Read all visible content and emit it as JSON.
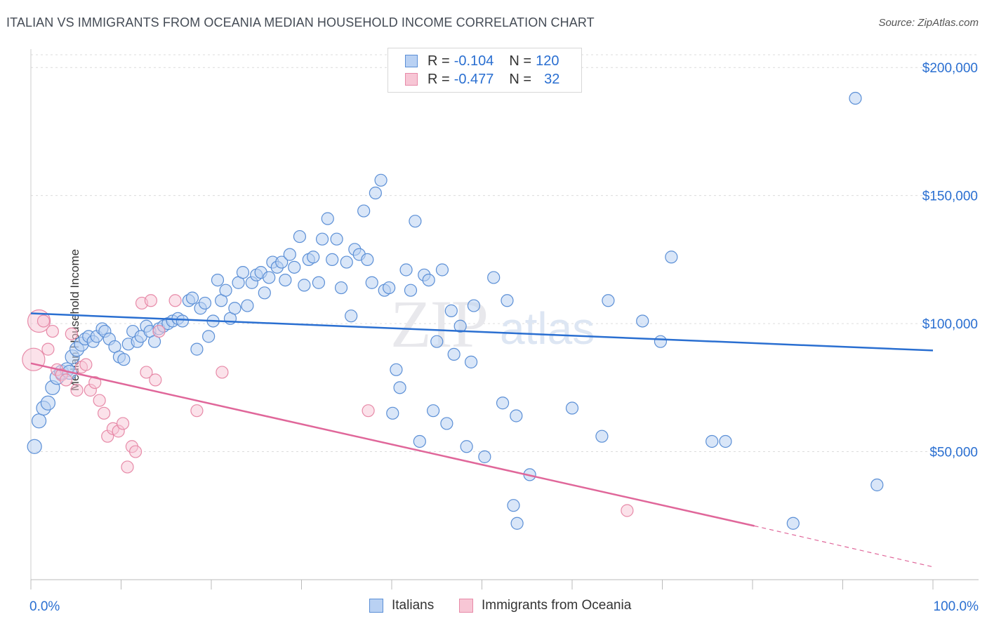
{
  "header": {
    "title": "ITALIAN VS IMMIGRANTS FROM OCEANIA MEDIAN HOUSEHOLD INCOME CORRELATION CHART",
    "source": "Source: ZipAtlas.com"
  },
  "watermark": {
    "text_zip": "ZIP",
    "text_atlas": "atlas"
  },
  "legend": {
    "r_label": "R =",
    "n_label": "N =",
    "rows": [
      {
        "r": "-0.104",
        "n": "120",
        "color": "#5b8fd6",
        "fill": "#b9d1f3"
      },
      {
        "r": "-0.477",
        "n": "32",
        "color": "#e78aa8",
        "fill": "#f7c6d5"
      }
    ]
  },
  "chart_data": {
    "type": "scatter",
    "title": "ITALIAN VS IMMIGRANTS FROM OCEANIA MEDIAN HOUSEHOLD INCOME CORRELATION CHART",
    "xlabel": "",
    "ylabel": "Median Household Income",
    "xlim": [
      0,
      100
    ],
    "ylim": [
      0,
      205000
    ],
    "x_tick_labels": [
      "0.0%",
      "100.0%"
    ],
    "y_ticks": [
      50000,
      100000,
      150000,
      200000
    ],
    "y_tick_labels": [
      "$50,000",
      "$100,000",
      "$150,000",
      "$200,000"
    ],
    "grid": true,
    "legend_position": "top-center",
    "series": [
      {
        "name": "Italians",
        "color": "#5b8fd6",
        "fill": "#b9d1f3",
        "trend": {
          "x": [
            0,
            100
          ],
          "y": [
            104000,
            89500
          ]
        },
        "points": [
          [
            0.4,
            52000
          ],
          [
            0.9,
            62000
          ],
          [
            1.4,
            67000
          ],
          [
            1.9,
            69000
          ],
          [
            2.4,
            75000
          ],
          [
            2.9,
            79000
          ],
          [
            3.4,
            81000
          ],
          [
            4.0,
            82000
          ],
          [
            4.3,
            81000
          ],
          [
            4.6,
            87000
          ],
          [
            5.1,
            90000
          ],
          [
            5.6,
            92000
          ],
          [
            6.0,
            94000
          ],
          [
            6.4,
            95000
          ],
          [
            6.9,
            93000
          ],
          [
            7.3,
            95000
          ],
          [
            7.9,
            98000
          ],
          [
            8.2,
            97000
          ],
          [
            8.7,
            94000
          ],
          [
            9.3,
            91000
          ],
          [
            9.8,
            87000
          ],
          [
            10.3,
            86000
          ],
          [
            10.8,
            92000
          ],
          [
            11.3,
            97000
          ],
          [
            11.8,
            93000
          ],
          [
            12.2,
            95000
          ],
          [
            12.8,
            99000
          ],
          [
            13.2,
            97000
          ],
          [
            13.7,
            93000
          ],
          [
            14.2,
            98000
          ],
          [
            14.7,
            99000
          ],
          [
            15.2,
            100000
          ],
          [
            15.7,
            101000
          ],
          [
            16.3,
            102000
          ],
          [
            16.8,
            101000
          ],
          [
            17.5,
            109000
          ],
          [
            17.9,
            110000
          ],
          [
            18.4,
            90000
          ],
          [
            18.8,
            106000
          ],
          [
            19.3,
            108000
          ],
          [
            19.7,
            95000
          ],
          [
            20.2,
            101000
          ],
          [
            20.7,
            117000
          ],
          [
            21.1,
            109000
          ],
          [
            21.6,
            113000
          ],
          [
            22.1,
            102000
          ],
          [
            22.6,
            106000
          ],
          [
            23.0,
            116000
          ],
          [
            23.5,
            120000
          ],
          [
            24.0,
            107000
          ],
          [
            24.5,
            116000
          ],
          [
            25.0,
            119000
          ],
          [
            25.5,
            120000
          ],
          [
            25.9,
            112000
          ],
          [
            26.4,
            118000
          ],
          [
            26.8,
            124000
          ],
          [
            27.3,
            122000
          ],
          [
            27.8,
            124000
          ],
          [
            28.2,
            117000
          ],
          [
            28.7,
            127000
          ],
          [
            29.2,
            122000
          ],
          [
            29.8,
            134000
          ],
          [
            30.3,
            115000
          ],
          [
            30.8,
            125000
          ],
          [
            31.3,
            126000
          ],
          [
            31.9,
            116000
          ],
          [
            32.3,
            133000
          ],
          [
            32.9,
            141000
          ],
          [
            33.4,
            125000
          ],
          [
            33.9,
            133000
          ],
          [
            34.4,
            114000
          ],
          [
            35.0,
            124000
          ],
          [
            35.5,
            103000
          ],
          [
            35.9,
            129000
          ],
          [
            36.4,
            127000
          ],
          [
            36.9,
            144000
          ],
          [
            37.3,
            125000
          ],
          [
            37.8,
            116000
          ],
          [
            38.2,
            151000
          ],
          [
            38.8,
            156000
          ],
          [
            39.2,
            113000
          ],
          [
            39.7,
            114000
          ],
          [
            40.1,
            65000
          ],
          [
            40.5,
            82000
          ],
          [
            40.9,
            75000
          ],
          [
            41.6,
            121000
          ],
          [
            42.1,
            113000
          ],
          [
            42.6,
            140000
          ],
          [
            43.1,
            54000
          ],
          [
            43.6,
            119000
          ],
          [
            44.1,
            117000
          ],
          [
            44.6,
            66000
          ],
          [
            45.0,
            93000
          ],
          [
            45.6,
            121000
          ],
          [
            46.1,
            61000
          ],
          [
            46.6,
            105000
          ],
          [
            46.9,
            88000
          ],
          [
            47.6,
            99000
          ],
          [
            48.3,
            52000
          ],
          [
            48.8,
            85000
          ],
          [
            49.1,
            107000
          ],
          [
            50.3,
            48000
          ],
          [
            51.3,
            118000
          ],
          [
            52.3,
            69000
          ],
          [
            52.8,
            109000
          ],
          [
            53.8,
            64000
          ],
          [
            53.5,
            29000
          ],
          [
            53.9,
            22000
          ],
          [
            55.3,
            41000
          ],
          [
            60.0,
            67000
          ],
          [
            63.3,
            56000
          ],
          [
            64.0,
            109000
          ],
          [
            67.8,
            101000
          ],
          [
            69.8,
            93000
          ],
          [
            71.0,
            126000
          ],
          [
            75.5,
            54000
          ],
          [
            77.0,
            54000
          ],
          [
            84.5,
            22000
          ],
          [
            91.4,
            188000
          ],
          [
            93.8,
            37000
          ]
        ]
      },
      {
        "name": "Immigrants from Oceania",
        "color": "#e78aa8",
        "fill": "#f7c6d5",
        "trend": {
          "x": [
            0,
            80.2
          ],
          "y": [
            84500,
            21000
          ],
          "dashed_to": [
            100,
            5000
          ]
        },
        "points": [
          [
            0.3,
            86000
          ],
          [
            0.9,
            101000
          ],
          [
            1.4,
            101000
          ],
          [
            1.9,
            90000
          ],
          [
            2.4,
            97000
          ],
          [
            2.9,
            82000
          ],
          [
            3.4,
            80000
          ],
          [
            3.9,
            78000
          ],
          [
            4.5,
            96000
          ],
          [
            5.1,
            74000
          ],
          [
            5.6,
            83000
          ],
          [
            6.1,
            84000
          ],
          [
            6.6,
            74000
          ],
          [
            7.1,
            77000
          ],
          [
            7.6,
            70000
          ],
          [
            8.1,
            65000
          ],
          [
            8.5,
            56000
          ],
          [
            9.1,
            59000
          ],
          [
            9.7,
            58000
          ],
          [
            10.2,
            61000
          ],
          [
            10.7,
            44000
          ],
          [
            11.2,
            52000
          ],
          [
            11.6,
            50000
          ],
          [
            12.3,
            108000
          ],
          [
            12.8,
            81000
          ],
          [
            13.3,
            109000
          ],
          [
            13.8,
            78000
          ],
          [
            14.2,
            97000
          ],
          [
            16.0,
            109000
          ],
          [
            18.4,
            66000
          ],
          [
            21.2,
            81000
          ],
          [
            37.4,
            66000
          ]
        ]
      }
    ],
    "extra_points_pink": [
      [
        66.1,
        27000
      ]
    ]
  }
}
